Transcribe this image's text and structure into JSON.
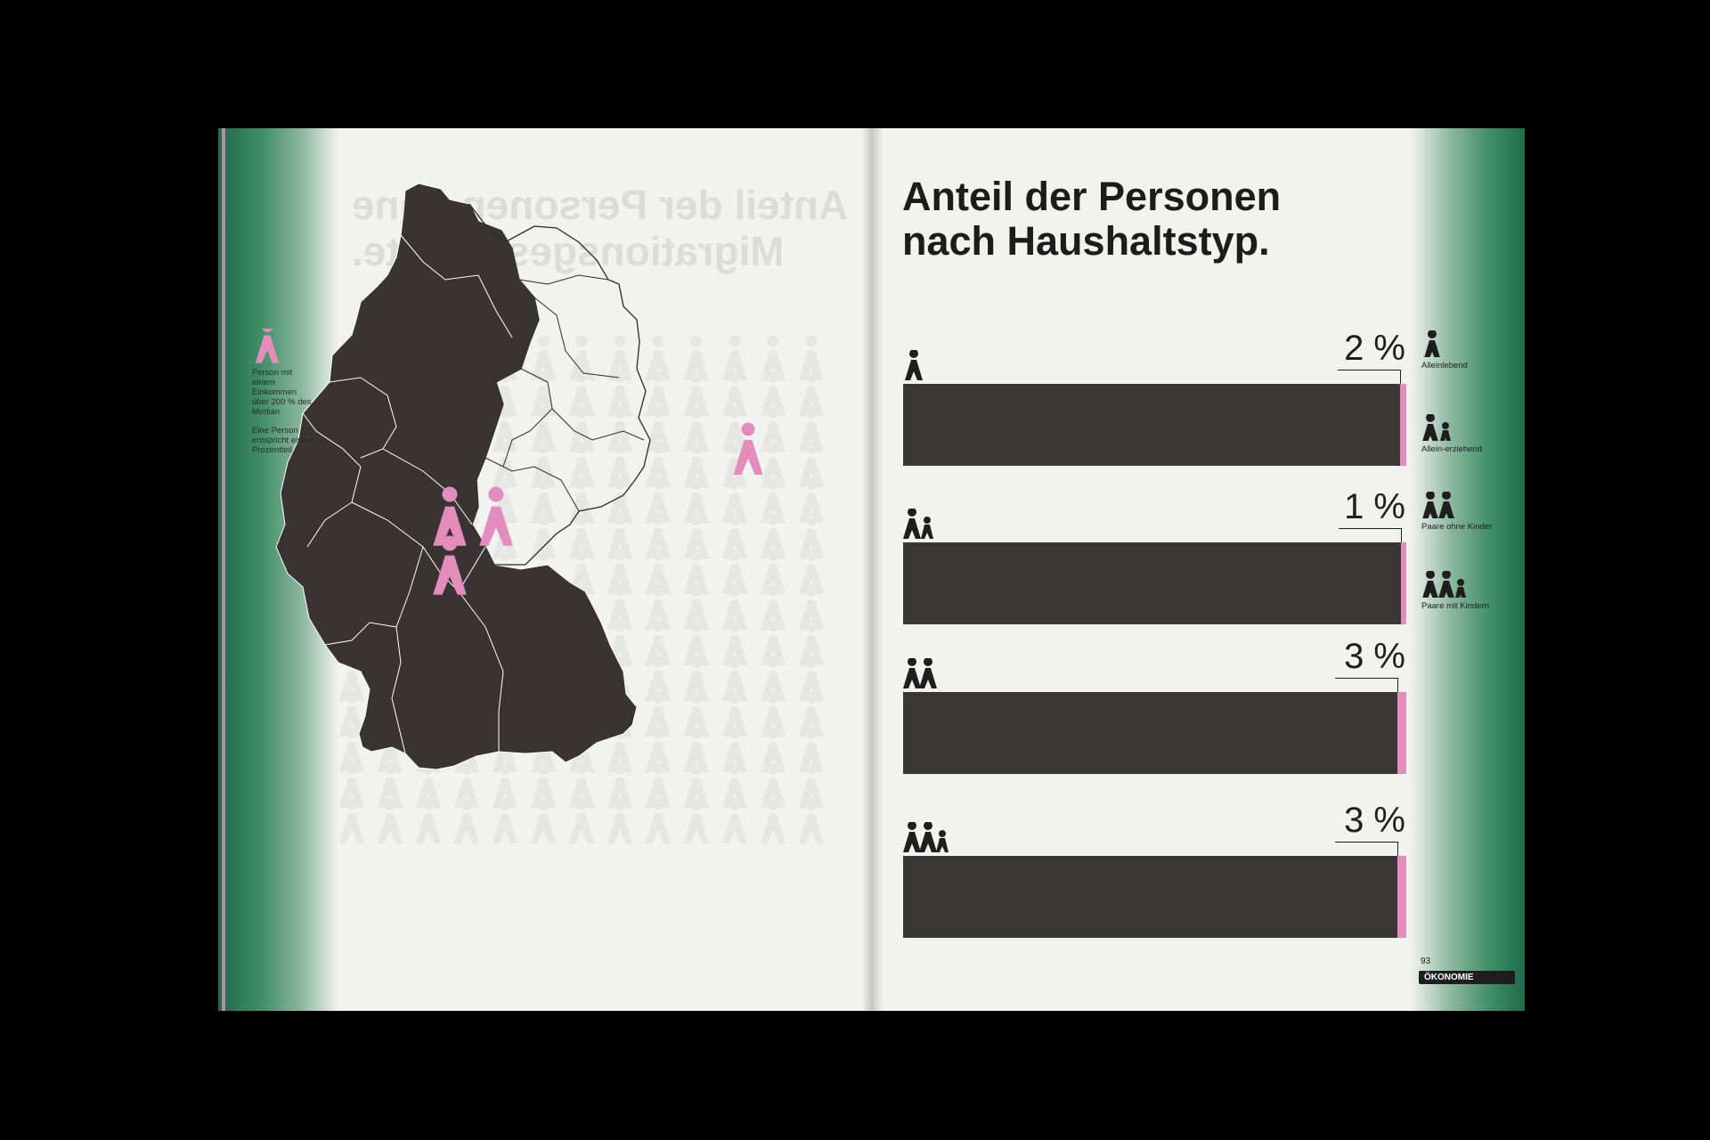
{
  "left_page": {
    "ghost_title": "Anteil der Personen ohne Migrationsgeschichte.",
    "legend": {
      "icon": "person-icon",
      "symbol_text": "Person mit einem Einkommen über 200 % des Median",
      "unit_text": "Eine Person entspricht einem Prozentteil."
    }
  },
  "right_page": {
    "title_line1": "Anteil der Personen",
    "title_line2": "nach Haushaltstyp.",
    "legend": [
      {
        "icon": "single-person-icon",
        "label": "Alleinlebend"
      },
      {
        "icon": "single-parent-icon",
        "label": "Allein-erziehend"
      },
      {
        "icon": "couple-icon",
        "label": "Paare ohne Kinder"
      },
      {
        "icon": "family-icon",
        "label": "Paare mit Kindern"
      }
    ],
    "page_number": "93",
    "section": "ÖKONOMIE"
  },
  "chart_data": {
    "type": "bar",
    "title": "Anteil der Personen nach Haushaltstyp.",
    "categories": [
      "Alleinlebend",
      "Alleinerziehend",
      "Paare ohne Kinder",
      "Paare mit Kindern"
    ],
    "values": [
      2,
      1,
      3,
      3
    ],
    "labels": [
      "2 %",
      "1 %",
      "3 %",
      "3 %"
    ],
    "unit": "%",
    "ylim": [
      0,
      100
    ],
    "colors": {
      "bar": "#3b3736",
      "highlight": "#e58cbf"
    }
  },
  "colors": {
    "accent_pink": "#e58cbf",
    "band_green": "#2f7a55",
    "dark": "#3b3736"
  }
}
